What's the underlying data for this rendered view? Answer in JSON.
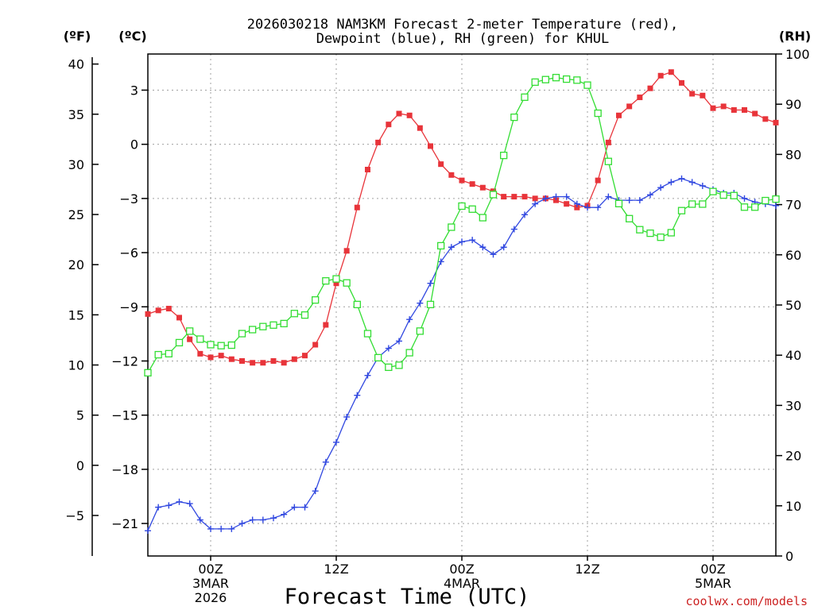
{
  "chart_data": {
    "type": "line",
    "title_lines": [
      "2026030218 NAM3KM Forecast 2-meter Temperature (red),",
      "Dewpoint (blue), RH (green) for KHUL"
    ],
    "xlabel": "Forecast Time (UTC)",
    "credit": "coolwx.com/models",
    "x_unit": "forecast hour",
    "x_range": [
      0,
      60
    ],
    "x_ticks": [
      {
        "x": 6,
        "lines": [
          "00Z",
          "3MAR",
          "2026"
        ]
      },
      {
        "x": 18,
        "lines": [
          "12Z"
        ]
      },
      {
        "x": 30,
        "lines": [
          "00Z",
          "4MAR"
        ]
      },
      {
        "x": 42,
        "lines": [
          "12Z"
        ]
      },
      {
        "x": 54,
        "lines": [
          "00Z",
          "5MAR"
        ]
      }
    ],
    "axes": {
      "celsius": {
        "label": "(ºC)",
        "range": [
          -22.8,
          5.0
        ],
        "ticks": [
          3,
          0,
          -3,
          -6,
          -9,
          -12,
          -15,
          -18,
          -21
        ],
        "tick_labels": [
          "3",
          "0",
          "−3",
          "−6",
          "−9",
          "−12",
          "−15",
          "−18",
          "−21"
        ]
      },
      "fahrenheit": {
        "label": "(ºF)",
        "ticks": [
          40,
          35,
          30,
          25,
          20,
          15,
          10,
          5,
          0,
          -5
        ],
        "tick_labels": [
          "40",
          "35",
          "30",
          "25",
          "20",
          "15",
          "10",
          "5",
          "0",
          "−5"
        ]
      },
      "rh": {
        "label": "(RH)",
        "range": [
          0,
          100
        ],
        "ticks": [
          0,
          10,
          20,
          30,
          40,
          50,
          60,
          70,
          80,
          90,
          100
        ],
        "tick_labels": [
          "0",
          "10",
          "20",
          "30",
          "40",
          "50",
          "60",
          "70",
          "80",
          "90",
          "100"
        ]
      }
    },
    "series": [
      {
        "name": "2-meter Temperature",
        "unit": "C",
        "axis": "celsius",
        "color": "#e8343a",
        "marker": "filled-square",
        "values": [
          -9.4,
          -9.2,
          -9.1,
          -9.6,
          -10.8,
          -11.6,
          -11.8,
          -11.7,
          -11.9,
          -12.0,
          -12.1,
          -12.1,
          -12.0,
          -12.1,
          -11.9,
          -11.7,
          -11.1,
          -10.0,
          -7.7,
          -5.9,
          -3.5,
          -1.4,
          0.1,
          1.1,
          1.7,
          1.6,
          0.9,
          -0.1,
          -1.1,
          -1.7,
          -2.0,
          -2.2,
          -2.4,
          -2.6,
          -2.9,
          -2.9,
          -2.9,
          -3.0,
          -3.0,
          -3.1,
          -3.3,
          -3.5,
          -3.4,
          -2.0,
          0.1,
          1.6,
          2.1,
          2.6,
          3.1,
          3.8,
          4.0,
          3.4,
          2.8,
          2.7,
          2.0,
          2.1,
          1.9,
          1.9,
          1.7,
          1.4,
          1.2
        ]
      },
      {
        "name": "Dewpoint",
        "unit": "C",
        "axis": "celsius",
        "color": "#3148e0",
        "marker": "plus",
        "values": [
          -21.4,
          -20.1,
          -20.0,
          -19.8,
          -19.9,
          -20.8,
          -21.3,
          -21.3,
          -21.3,
          -21.0,
          -20.8,
          -20.8,
          -20.7,
          -20.5,
          -20.1,
          -20.1,
          -19.2,
          -17.6,
          -16.5,
          -15.1,
          -13.9,
          -12.8,
          -11.8,
          -11.3,
          -10.9,
          -9.7,
          -8.8,
          -7.7,
          -6.5,
          -5.7,
          -5.4,
          -5.3,
          -5.7,
          -6.1,
          -5.7,
          -4.7,
          -3.9,
          -3.3,
          -3.0,
          -2.9,
          -2.9,
          -3.3,
          -3.5,
          -3.5,
          -2.9,
          -3.1,
          -3.1,
          -3.1,
          -2.8,
          -2.4,
          -2.1,
          -1.9,
          -2.1,
          -2.3,
          -2.5,
          -2.7,
          -2.7,
          -3.0,
          -3.2,
          -3.3,
          -3.4
        ]
      },
      {
        "name": "RH",
        "unit": "%",
        "axis": "rh",
        "color": "#33dd33",
        "marker": "open-square",
        "values": [
          36.5,
          40.1,
          40.3,
          42.5,
          44.8,
          43.2,
          42.1,
          41.9,
          42.0,
          44.3,
          45.1,
          45.7,
          46.0,
          46.3,
          48.3,
          48.0,
          51.0,
          54.8,
          55.2,
          54.4,
          50.1,
          44.3,
          39.5,
          37.6,
          38.0,
          40.5,
          44.8,
          50.1,
          61.8,
          65.5,
          69.7,
          69.1,
          67.4,
          72.0,
          79.8,
          87.4,
          91.4,
          94.4,
          94.9,
          95.3,
          95.0,
          94.8,
          93.8,
          88.2,
          78.6,
          70.2,
          67.2,
          65.0,
          64.3,
          63.5,
          64.4,
          68.8,
          70.1,
          70.1,
          72.6,
          71.9,
          71.8,
          69.5,
          69.5,
          70.8,
          71.1
        ]
      }
    ]
  }
}
